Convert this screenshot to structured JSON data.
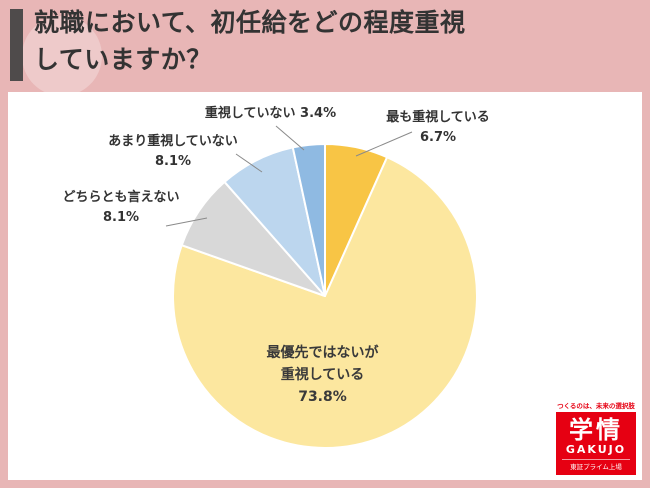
{
  "title": {
    "line1": "就職において、初任給をどの程度重視",
    "line2": "していますか？"
  },
  "chart_data": {
    "type": "pie",
    "title": "就職において、初任給をどの程度重視していますか？",
    "labels": [
      "最も重視している",
      "最優先ではないが重視している",
      "どちらとも言えない",
      "あまり重視していない",
      "重視していない"
    ],
    "values": [
      6.7,
      73.8,
      8.1,
      8.1,
      3.4
    ],
    "percent_labels": [
      "6.7%",
      "73.8%",
      "8.1%",
      "8.1%",
      "3.4%"
    ],
    "colors": [
      "#F8C545",
      "#FCE79F",
      "#D8D8D8",
      "#BCD6EE",
      "#8FBAE2"
    ],
    "center_label_lines": [
      "最優先ではないが",
      "重視している"
    ],
    "start_angle_deg": 0,
    "direction": "clockwise",
    "slice_stroke": "#FFFFFF",
    "legend": "none"
  },
  "logo": {
    "tagline": "つくるのは、未来の選択肢",
    "name_jp": "学情",
    "name_en": "GAKUJO",
    "listing": "東証プライム上場"
  }
}
